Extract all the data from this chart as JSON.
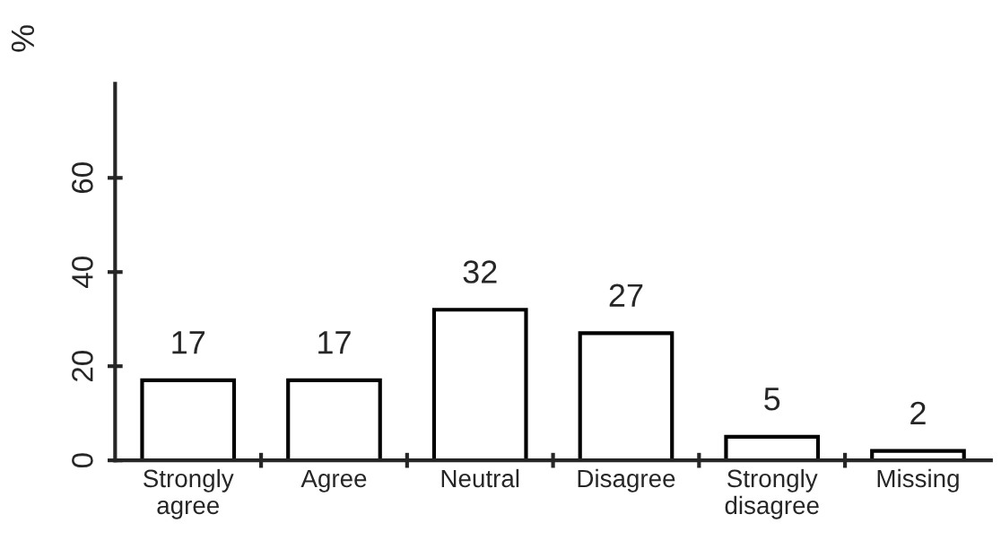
{
  "chart_data": {
    "type": "bar",
    "ylabel": "%",
    "categories": [
      "Strongly\nagree",
      "Agree",
      "Neutral",
      "Disagree",
      "Strongly\ndisagree",
      "Missing"
    ],
    "values": [
      17,
      17,
      32,
      27,
      5,
      2
    ],
    "color": "#ffffff",
    "ylim": [
      0,
      80
    ],
    "yticks": [
      0,
      20,
      40,
      60
    ],
    "data_labels": true,
    "grid": false,
    "legend": false
  }
}
